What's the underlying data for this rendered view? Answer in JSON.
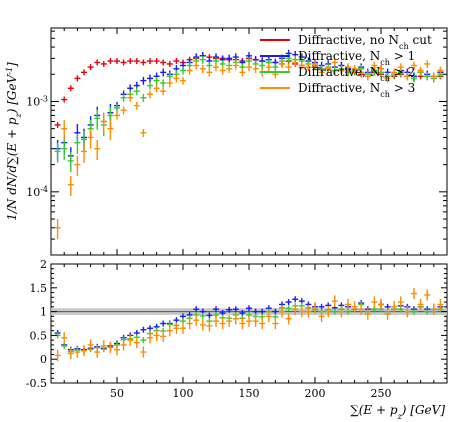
{
  "chart_data": {
    "type": "scatter",
    "x_label": "∑(E + p_z) [GeV]",
    "y_label_top": "1/N dN/d∑(E + p_z) [GeV^-1]",
    "top_panel": {
      "log_scale": true,
      "ylim": [
        2e-05,
        0.0065
      ],
      "y_ticks": [
        {
          "value": 0.001,
          "label": "10^-3"
        },
        {
          "value": 0.0001,
          "label": "10^-4"
        }
      ]
    },
    "ratio_panel": {
      "ylim": [
        -0.5,
        2
      ],
      "y_ticks": [
        {
          "value": 2,
          "label": "2"
        },
        {
          "value": 1.5,
          "label": "1.5"
        },
        {
          "value": 1,
          "label": "1"
        },
        {
          "value": 0.5,
          "label": "0.5"
        },
        {
          "value": 0,
          "label": "0"
        },
        {
          "value": -0.5,
          "label": "-0.5"
        }
      ],
      "reference_band": [
        0.93,
        1.07
      ]
    },
    "xlim": [
      0,
      300
    ],
    "x_ticks": [
      50,
      100,
      150,
      200,
      250
    ],
    "legend_position": "top-right",
    "series": [
      {
        "name": "Diffractive, no N_ch cut",
        "color": "#e8000b",
        "x": [
          5,
          10,
          15,
          20,
          25,
          30,
          35,
          40,
          45,
          50,
          55,
          60,
          65,
          70,
          75,
          80,
          85,
          90,
          95,
          100,
          105,
          110,
          115,
          120,
          125,
          130,
          135,
          140,
          145,
          150,
          155,
          160,
          165,
          170,
          175,
          180,
          185,
          190,
          195,
          200,
          205,
          210,
          215,
          220,
          225,
          230,
          235,
          240,
          245,
          250,
          255,
          260,
          265,
          270,
          275,
          280,
          285,
          290,
          295
        ],
        "y": [
          0.00055,
          0.00105,
          0.0014,
          0.0018,
          0.0021,
          0.0024,
          0.0027,
          0.0026,
          0.0028,
          0.0028,
          0.0027,
          0.0028,
          0.0028,
          0.0027,
          0.0028,
          0.0028,
          0.0027,
          0.0026,
          0.0028,
          0.0027,
          0.0029,
          0.003,
          0.0032,
          0.0031,
          0.003,
          0.003,
          0.0029,
          0.0029,
          0.0028,
          0.003,
          0.0029,
          0.0028,
          0.0027,
          0.0027,
          0.0026,
          0.0028,
          0.0026,
          0.0025,
          0.0024,
          0.0024,
          0.0023,
          0.0023,
          0.0022,
          0.0022,
          0.0021,
          0.0021,
          0.002,
          0.002,
          0.0021,
          0.002,
          0.0019,
          0.0019,
          0.002,
          0.0019,
          0.0018,
          0.0019,
          0.0019,
          0.0018,
          0.0019
        ]
      },
      {
        "name": "Diffractive, N_ch > 1",
        "color": "#1a1aff",
        "x": [
          5,
          10,
          15,
          20,
          25,
          30,
          35,
          40,
          45,
          50,
          55,
          60,
          65,
          70,
          75,
          80,
          85,
          90,
          95,
          100,
          105,
          110,
          115,
          120,
          125,
          130,
          135,
          140,
          145,
          150,
          155,
          160,
          165,
          170,
          175,
          180,
          185,
          190,
          195,
          200,
          205,
          210,
          215,
          220,
          225,
          230,
          235,
          240,
          245,
          250,
          255,
          260,
          265,
          270,
          275,
          280,
          285,
          290,
          295
        ],
        "y": [
          0.0003,
          0.00035,
          0.00025,
          0.00045,
          0.0004,
          0.00055,
          0.0007,
          0.0006,
          0.00075,
          0.0009,
          0.0012,
          0.0014,
          0.0015,
          0.0017,
          0.0018,
          0.0019,
          0.0021,
          0.002,
          0.0023,
          0.0025,
          0.0027,
          0.0031,
          0.0032,
          0.0028,
          0.0031,
          0.0029,
          0.003,
          0.0031,
          0.0027,
          0.0032,
          0.0029,
          0.0028,
          0.0029,
          0.0027,
          0.003,
          0.0034,
          0.0033,
          0.0031,
          0.0028,
          0.0027,
          0.0025,
          0.0026,
          0.0024,
          0.0025,
          0.0023,
          0.0022,
          0.0024,
          0.0021,
          0.0022,
          0.0023,
          0.0021,
          0.002,
          0.0022,
          0.0021,
          0.0019,
          0.0021,
          0.002,
          0.0019,
          0.0021
        ]
      },
      {
        "name": "Diffractive, N_ch > 2",
        "color": "#33cc33",
        "x": [
          5,
          10,
          15,
          20,
          25,
          30,
          35,
          40,
          45,
          50,
          55,
          60,
          65,
          70,
          75,
          80,
          85,
          90,
          95,
          100,
          105,
          110,
          115,
          120,
          125,
          130,
          135,
          140,
          145,
          150,
          155,
          160,
          165,
          170,
          175,
          180,
          185,
          190,
          195,
          200,
          205,
          210,
          215,
          220,
          225,
          230,
          235,
          240,
          245,
          250,
          255,
          260,
          265,
          270,
          275,
          280,
          285,
          290,
          295
        ],
        "y": [
          0.00028,
          0.0003,
          0.00022,
          0.00035,
          0.00038,
          0.0005,
          0.00065,
          0.00055,
          0.0007,
          0.00085,
          0.0011,
          0.0012,
          0.0013,
          0.0011,
          0.0015,
          0.0017,
          0.0016,
          0.0019,
          0.002,
          0.0022,
          0.0025,
          0.0028,
          0.0029,
          0.0025,
          0.0028,
          0.0026,
          0.0025,
          0.0027,
          0.0024,
          0.0028,
          0.0026,
          0.0025,
          0.0027,
          0.0024,
          0.0028,
          0.003,
          0.0029,
          0.0028,
          0.0026,
          0.0025,
          0.0023,
          0.0024,
          0.0022,
          0.0023,
          0.0021,
          0.0022,
          0.0023,
          0.002,
          0.0022,
          0.0021,
          0.0019,
          0.002,
          0.0021,
          0.0019,
          0.0018,
          0.0021,
          0.0019,
          0.0018,
          0.002
        ]
      },
      {
        "name": "Diffractive, N_ch > 3",
        "color": "#ff8c00",
        "x": [
          5,
          10,
          15,
          20,
          25,
          30,
          35,
          40,
          45,
          50,
          55,
          60,
          65,
          70,
          75,
          80,
          85,
          90,
          95,
          100,
          105,
          110,
          115,
          120,
          125,
          130,
          135,
          140,
          145,
          150,
          155,
          160,
          165,
          170,
          175,
          180,
          185,
          190,
          195,
          200,
          205,
          210,
          215,
          220,
          225,
          230,
          235,
          240,
          245,
          250,
          255,
          260,
          265,
          270,
          275,
          280,
          285,
          290,
          295
        ],
        "y": [
          4e-05,
          0.0005,
          0.00012,
          0.0002,
          0.00028,
          0.0004,
          0.0003,
          0.0006,
          0.0005,
          0.0007,
          0.0008,
          0.0011,
          0.0009,
          0.00045,
          0.0012,
          0.0014,
          0.0013,
          0.0016,
          0.0018,
          0.0017,
          0.0022,
          0.0025,
          0.0023,
          0.0021,
          0.0024,
          0.0022,
          0.0023,
          0.0025,
          0.0021,
          0.0024,
          0.0023,
          0.0021,
          0.0024,
          0.002,
          0.0026,
          0.0024,
          0.0027,
          0.0025,
          0.0024,
          0.0026,
          0.0021,
          0.0023,
          0.0027,
          0.0022,
          0.0024,
          0.0023,
          0.0021,
          0.0019,
          0.0025,
          0.0023,
          0.0018,
          0.0021,
          0.0024,
          0.0019,
          0.0025,
          0.0022,
          0.0026,
          0.0019,
          0.0022
        ]
      }
    ],
    "ratio_series": [
      {
        "name": "Diffractive, N_ch > 1",
        "color": "#1a1aff",
        "x": [
          5,
          10,
          15,
          20,
          25,
          30,
          35,
          40,
          45,
          50,
          55,
          60,
          65,
          70,
          75,
          80,
          85,
          90,
          95,
          100,
          105,
          110,
          115,
          120,
          125,
          130,
          135,
          140,
          145,
          150,
          155,
          160,
          165,
          170,
          175,
          180,
          185,
          190,
          195,
          200,
          205,
          210,
          215,
          220,
          225,
          230,
          235,
          240,
          245,
          250,
          255,
          260,
          265,
          270,
          275,
          280,
          285,
          290,
          295
        ],
        "y": [
          0.55,
          0.3,
          0.2,
          0.22,
          0.2,
          0.23,
          0.26,
          0.23,
          0.28,
          0.33,
          0.45,
          0.5,
          0.55,
          0.62,
          0.65,
          0.68,
          0.75,
          0.75,
          0.82,
          0.9,
          0.93,
          1.05,
          1.0,
          0.92,
          1.05,
          0.97,
          1.04,
          1.05,
          0.97,
          1.07,
          1.0,
          1.0,
          1.07,
          1.0,
          1.15,
          1.2,
          1.26,
          1.22,
          1.15,
          1.1,
          1.1,
          1.13,
          1.08,
          1.13,
          1.1,
          1.05,
          1.18,
          1.05,
          1.05,
          1.15,
          1.1,
          1.05,
          1.12,
          1.1,
          1.05,
          1.1,
          1.05,
          1.05,
          1.1
        ]
      },
      {
        "name": "Diffractive, N_ch > 2",
        "color": "#33cc33",
        "x": [
          5,
          10,
          15,
          20,
          25,
          30,
          35,
          40,
          45,
          50,
          55,
          60,
          65,
          70,
          75,
          80,
          85,
          90,
          95,
          100,
          105,
          110,
          115,
          120,
          125,
          130,
          135,
          140,
          145,
          150,
          155,
          160,
          165,
          170,
          175,
          180,
          185,
          190,
          195,
          200,
          205,
          210,
          215,
          220,
          225,
          230,
          235,
          240,
          245,
          250,
          255,
          260,
          265,
          270,
          275,
          280,
          285,
          290,
          295
        ],
        "y": [
          0.5,
          0.28,
          0.16,
          0.19,
          0.18,
          0.21,
          0.24,
          0.21,
          0.25,
          0.3,
          0.41,
          0.43,
          0.46,
          0.4,
          0.54,
          0.6,
          0.59,
          0.73,
          0.71,
          0.8,
          0.86,
          0.93,
          0.91,
          0.8,
          0.93,
          0.87,
          0.86,
          0.93,
          0.86,
          0.93,
          0.9,
          0.89,
          1.0,
          0.89,
          1.08,
          1.07,
          1.12,
          1.12,
          1.08,
          1.04,
          1.0,
          1.04,
          1.0,
          1.05,
          1.0,
          1.05,
          1.15,
          1.0,
          1.05,
          1.05,
          1.0,
          1.05,
          1.05,
          1.0,
          1.0,
          1.1,
          1.0,
          1.0,
          1.05
        ]
      },
      {
        "name": "Diffractive, N_ch > 3",
        "color": "#ff8c00",
        "x": [
          5,
          10,
          15,
          20,
          25,
          30,
          35,
          40,
          45,
          50,
          55,
          60,
          65,
          70,
          75,
          80,
          85,
          90,
          95,
          100,
          105,
          110,
          115,
          120,
          125,
          130,
          135,
          140,
          145,
          150,
          155,
          160,
          165,
          170,
          175,
          180,
          185,
          190,
          195,
          200,
          205,
          210,
          215,
          220,
          225,
          230,
          235,
          240,
          245,
          250,
          255,
          260,
          265,
          270,
          275,
          280,
          285,
          290,
          295
        ],
        "y": [
          0.08,
          0.45,
          0.12,
          0.15,
          0.18,
          0.3,
          0.15,
          0.28,
          0.25,
          0.2,
          0.3,
          0.4,
          0.35,
          0.15,
          0.45,
          0.5,
          0.48,
          0.6,
          0.65,
          0.65,
          0.75,
          0.82,
          0.72,
          0.7,
          0.8,
          0.75,
          0.8,
          0.85,
          0.75,
          0.8,
          0.8,
          0.75,
          0.9,
          0.75,
          1.0,
          0.85,
          1.05,
          1.0,
          1.0,
          1.08,
          0.9,
          1.0,
          1.22,
          1.0,
          1.15,
          1.1,
          1.05,
          0.95,
          1.2,
          1.15,
          0.95,
          1.1,
          1.2,
          1.0,
          1.38,
          1.15,
          1.35,
          1.05,
          1.15
        ]
      }
    ]
  }
}
